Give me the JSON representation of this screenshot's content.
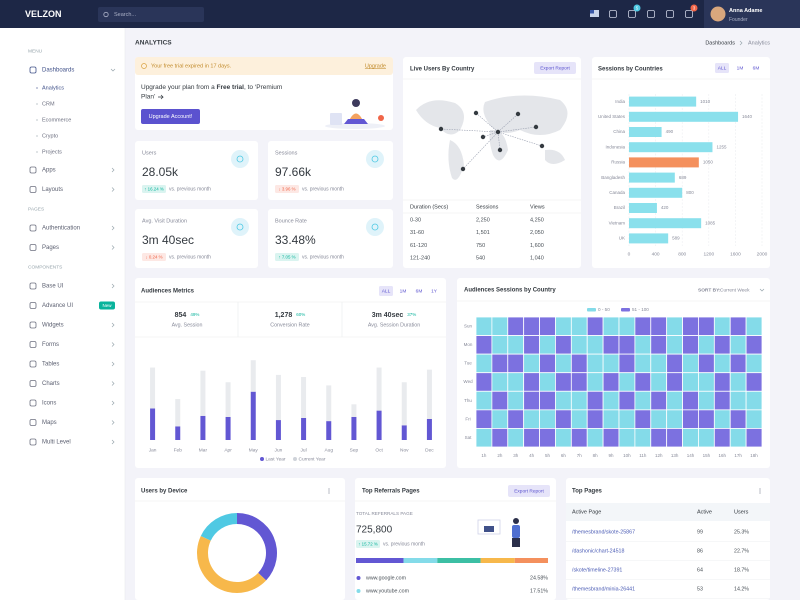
{
  "topbar": {
    "logo": "VELZON",
    "search": "Search...",
    "cart_badge": "5",
    "notification_badge": "3",
    "user_name": "Anna Adame",
    "user_role": "Founder"
  },
  "sidebar": {
    "sections": [
      {
        "label": "MENU",
        "items": [
          {
            "label": "Dashboards",
            "active": true,
            "sub": [
              {
                "label": "Analytics",
                "active": true
              },
              {
                "label": "CRM"
              },
              {
                "label": "Ecommerce"
              },
              {
                "label": "Crypto"
              },
              {
                "label": "Projects"
              }
            ]
          },
          {
            "label": "Apps"
          },
          {
            "label": "Layouts"
          }
        ]
      },
      {
        "label": "PAGES",
        "items": [
          {
            "label": "Authentication"
          },
          {
            "label": "Pages"
          }
        ]
      },
      {
        "label": "COMPONENTS",
        "items": [
          {
            "label": "Base UI"
          },
          {
            "label": "Advance UI",
            "badge": "New"
          },
          {
            "label": "Widgets"
          },
          {
            "label": "Forms"
          },
          {
            "label": "Tables"
          },
          {
            "label": "Charts"
          },
          {
            "label": "Icons"
          },
          {
            "label": "Maps"
          },
          {
            "label": "Multi Level"
          }
        ]
      }
    ]
  },
  "page": {
    "title": "ANALYTICS",
    "breadcrumb": [
      "Dashboards",
      "Analytics"
    ]
  },
  "alert": {
    "text": "Your free trial expired in 17 days.",
    "link": "Upgrade"
  },
  "upgrade": {
    "line1_before": "Upgrade your plan from a ",
    "bold": "Free trial",
    "line1_after": ", to ‘Premium",
    "line2": "Plan’",
    "button": "Upgrade Account!"
  },
  "stats": [
    {
      "label": "Users",
      "value": "28.05k",
      "change": "↑ 16.24 %",
      "direction": "up",
      "note": "vs. previous month"
    },
    {
      "label": "Sessions",
      "value": "97.66k",
      "change": "↓ 3.96 %",
      "direction": "down",
      "note": "vs. previous month"
    },
    {
      "label": "Avg. Visit Duration",
      "value": "3m 40sec",
      "change": "↓ 0.24 %",
      "direction": "down",
      "note": "vs. previous month"
    },
    {
      "label": "Bounce Rate",
      "value": "33.48%",
      "change": "↑ 7.05 %",
      "direction": "up",
      "note": "vs. previous month"
    }
  ],
  "live_users": {
    "title": "Live Users By Country",
    "button": "Export Report",
    "columns": [
      "Duration (Secs)",
      "Sessions",
      "Views"
    ],
    "rows": [
      [
        "0-30",
        "2,250",
        "4,250"
      ],
      [
        "31-60",
        "1,501",
        "2,050"
      ],
      [
        "61-120",
        "750",
        "1,600"
      ],
      [
        "121-240",
        "540",
        "1,040"
      ]
    ]
  },
  "sessions_by_countries": {
    "type": "bar",
    "orientation": "horizontal",
    "title": "Sessions by Countries",
    "filters": [
      "ALL",
      "1M",
      "6M"
    ],
    "categories": [
      "India",
      "United States",
      "China",
      "Indonesia",
      "Russia",
      "Bangladesh",
      "Canada",
      "Brazil",
      "Vietnam",
      "UK"
    ],
    "values": [
      1010,
      1640,
      490,
      1255,
      1050,
      689,
      800,
      420,
      1085,
      589
    ],
    "colors": [
      "#8ae0ec",
      "#8ae0ec",
      "#8ae0ec",
      "#8ae0ec",
      "#f4905d",
      "#8ae0ec",
      "#8ae0ec",
      "#8ae0ec",
      "#8ae0ec",
      "#8ae0ec"
    ],
    "xlim": [
      0,
      2000
    ],
    "xticks": [
      0,
      400,
      800,
      1200,
      1600,
      2000
    ],
    "grid": true
  },
  "audiences_metrics": {
    "type": "stacked-bar",
    "title": "Audiences Metrics",
    "filters": [
      "ALL",
      "1M",
      "6M",
      "1Y"
    ],
    "summary": [
      {
        "value": "854",
        "change": "49%",
        "label": "Avg. Session"
      },
      {
        "value": "1,278",
        "change": "60%",
        "label": "Conversion Rate"
      },
      {
        "value": "3m 40sec",
        "change": "37%",
        "label": "Avg. Session Duration"
      }
    ],
    "categories": [
      "Jan",
      "Feb",
      "Mar",
      "Apr",
      "May",
      "Jun",
      "Jul",
      "Aug",
      "Sep",
      "Oct",
      "Nov",
      "Dec"
    ],
    "series": [
      {
        "name": "Last Year",
        "color": "#6257d3",
        "values": [
          30,
          13,
          23,
          22,
          46,
          19,
          21,
          18,
          22,
          28,
          14,
          20
        ]
      },
      {
        "name": "Current Year",
        "color": "#e9ebee",
        "values": [
          39,
          26,
          43,
          33,
          30,
          43,
          39,
          34,
          12,
          41,
          41,
          47
        ]
      }
    ],
    "ylim": [
      0,
      80
    ]
  },
  "audience_sessions": {
    "type": "heatmap",
    "title": "Audiences Sessions by Country",
    "sort_label": "SORT BY:",
    "sort_value": "Current Week",
    "ranges": [
      {
        "name": "0 - 50",
        "from": 0,
        "to": 50,
        "color": "#84dbe9"
      },
      {
        "name": "51 - 100",
        "from": 51,
        "to": 100,
        "color": "#7c71e0"
      }
    ],
    "rows": [
      "Sun",
      "Mon",
      "Tue",
      "Wed",
      "Thu",
      "Fri",
      "Sat"
    ],
    "columns": [
      "1h",
      "2h",
      "3h",
      "4h",
      "5h",
      "6h",
      "7h",
      "8h",
      "9h",
      "10h",
      "11h",
      "12h",
      "13h",
      "14h",
      "15h",
      "16h",
      "17h",
      "18h"
    ],
    "values": [
      [
        30,
        28,
        75,
        88,
        66,
        40,
        22,
        73,
        35,
        25,
        80,
        64,
        30,
        82,
        90,
        27,
        70,
        45
      ],
      [
        62,
        35,
        20,
        78,
        45,
        80,
        33,
        18,
        71,
        58,
        24,
        85,
        40,
        66,
        30,
        77,
        20,
        55
      ],
      [
        25,
        70,
        84,
        30,
        60,
        22,
        90,
        44,
        28,
        76,
        38,
        20,
        68,
        35,
        81,
        48,
        62,
        30
      ],
      [
        80,
        20,
        42,
        68,
        27,
        75,
        60,
        30,
        86,
        24,
        57,
        33,
        74,
        22,
        45,
        70,
        26,
        88
      ],
      [
        35,
        64,
        26,
        90,
        72,
        30,
        48,
        82,
        20,
        66,
        28,
        78,
        36,
        60,
        24,
        85,
        42,
        30
      ],
      [
        70,
        28,
        60,
        22,
        45,
        84,
        26,
        58,
        40,
        30,
        74,
        46,
        25,
        88,
        62,
        20,
        78,
        34
      ],
      [
        22,
        76,
        30,
        55,
        85,
        34,
        70,
        24,
        62,
        45,
        20,
        68,
        82,
        28,
        36,
        74,
        30,
        60
      ]
    ]
  },
  "users_by_device": {
    "type": "donut",
    "title": "Users by Device",
    "values": [
      37,
      45,
      18
    ],
    "colors": [
      "#6257d3",
      "#f7b84b",
      "#4fc9e3"
    ]
  },
  "referrals": {
    "title": "Top Referrals Pages",
    "button": "Export Report",
    "label": "TOTAL REFERRALS PAGE",
    "total": "725,800",
    "change": "↑ 15.72 %",
    "note": "vs. previous month",
    "segments": [
      {
        "value": 24.58,
        "color": "#6257d3"
      },
      {
        "value": 17.51,
        "color": "#84dbe9"
      },
      {
        "value": 22.4,
        "color": "#3cbfa4"
      },
      {
        "value": 17.7,
        "color": "#f7b84b"
      },
      {
        "value": 17.2,
        "color": "#f4905d"
      }
    ],
    "sources": [
      {
        "name": "www.google.com",
        "value": "24.58%",
        "color": "#6257d3"
      },
      {
        "name": "www.youtube.com",
        "value": "17.51%",
        "color": "#84dbe9"
      }
    ]
  },
  "top_pages": {
    "title": "Top Pages",
    "columns": [
      "Active Page",
      "Active",
      "Users"
    ],
    "rows": [
      [
        "/themesbrand/skote-25867",
        "99",
        "25.3%"
      ],
      [
        "/dashonic/chart-24518",
        "86",
        "22.7%"
      ],
      [
        "/skote/timeline-27391",
        "64",
        "18.7%"
      ],
      [
        "/themesbrand/minia-26441",
        "53",
        "14.2%"
      ]
    ]
  }
}
